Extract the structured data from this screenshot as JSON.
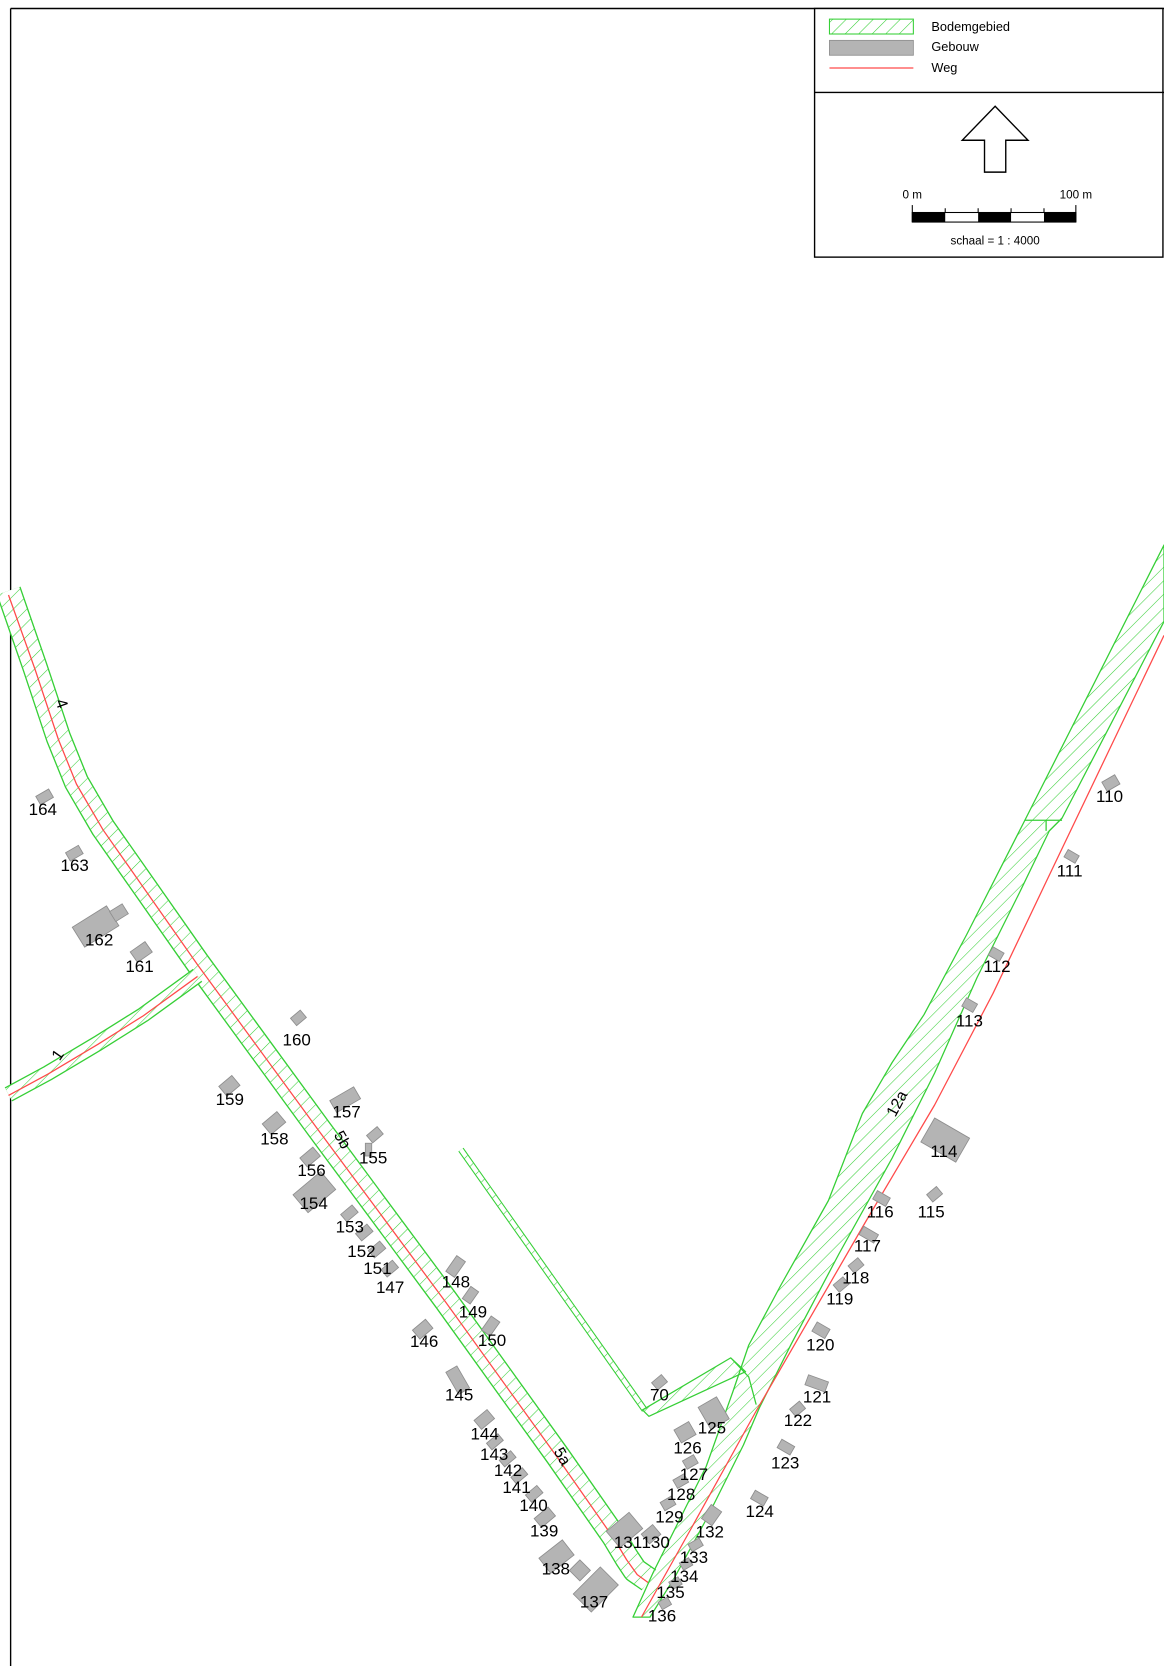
{
  "colors": {
    "area_hatch": "#36cf36",
    "road_line": "#ff4a4a",
    "building_fill": "#b4b4b4",
    "building_edge": "#8e8e8e"
  },
  "legend": {
    "items": [
      {
        "label": "Bodemgebied",
        "symbol": "hatched-area-icon"
      },
      {
        "label": "Gebouw",
        "symbol": "filled-area-icon"
      },
      {
        "label": "Weg",
        "symbol": "line-icon"
      }
    ]
  },
  "north_arrow": {
    "icon": "north-arrow-icon"
  },
  "scale": {
    "start_label": "0 m",
    "end_label": "100 m",
    "text": "schaal = 1 : 4000"
  },
  "roads": {
    "labels": [
      "4",
      "1",
      "5b",
      "5a",
      "12a"
    ]
  },
  "buildings": {
    "numbers": [
      "164",
      "163",
      "162",
      "161",
      "160",
      "159",
      "157",
      "158",
      "155",
      "156",
      "154",
      "153",
      "152",
      "151",
      "147",
      "148",
      "149",
      "150",
      "146",
      "145",
      "70",
      "144",
      "125",
      "126",
      "143",
      "142",
      "141",
      "127",
      "128",
      "140",
      "124",
      "129",
      "132",
      "139",
      "131",
      "130",
      "133",
      "138",
      "134",
      "137",
      "135",
      "136",
      "110",
      "111",
      "112",
      "113",
      "114",
      "116",
      "115",
      "117",
      "118",
      "119",
      "120",
      "121",
      "122",
      "123"
    ]
  }
}
